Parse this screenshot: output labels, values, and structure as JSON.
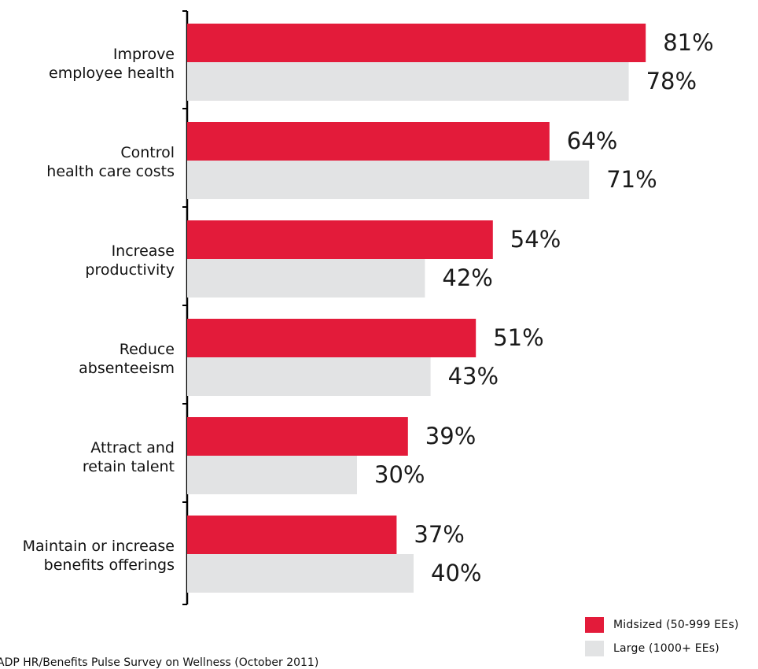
{
  "chart_data": {
    "type": "bar",
    "orientation": "horizontal",
    "categories": [
      [
        "Improve",
        "employee health"
      ],
      [
        "Control",
        "health care costs"
      ],
      [
        "Increase",
        "productivity"
      ],
      [
        "Reduce",
        "absenteeism"
      ],
      [
        "Attract and",
        "retain talent"
      ],
      [
        "Maintain or increase",
        "benefits offerings"
      ]
    ],
    "series": [
      {
        "name": "Midsized (50-999 EEs)",
        "color": "#e31b3a",
        "values": [
          81,
          64,
          54,
          51,
          39,
          37
        ]
      },
      {
        "name": "Large (1000+ EEs)",
        "color": "#e2e3e4",
        "values": [
          78,
          71,
          42,
          43,
          30,
          40
        ]
      }
    ],
    "value_suffix": "%",
    "xlim": [
      0,
      100
    ],
    "grid": false,
    "legend_position": "bottom-right"
  },
  "source_text": "ADP HR/Benefits Pulse Survey on Wellness (October 2011)"
}
